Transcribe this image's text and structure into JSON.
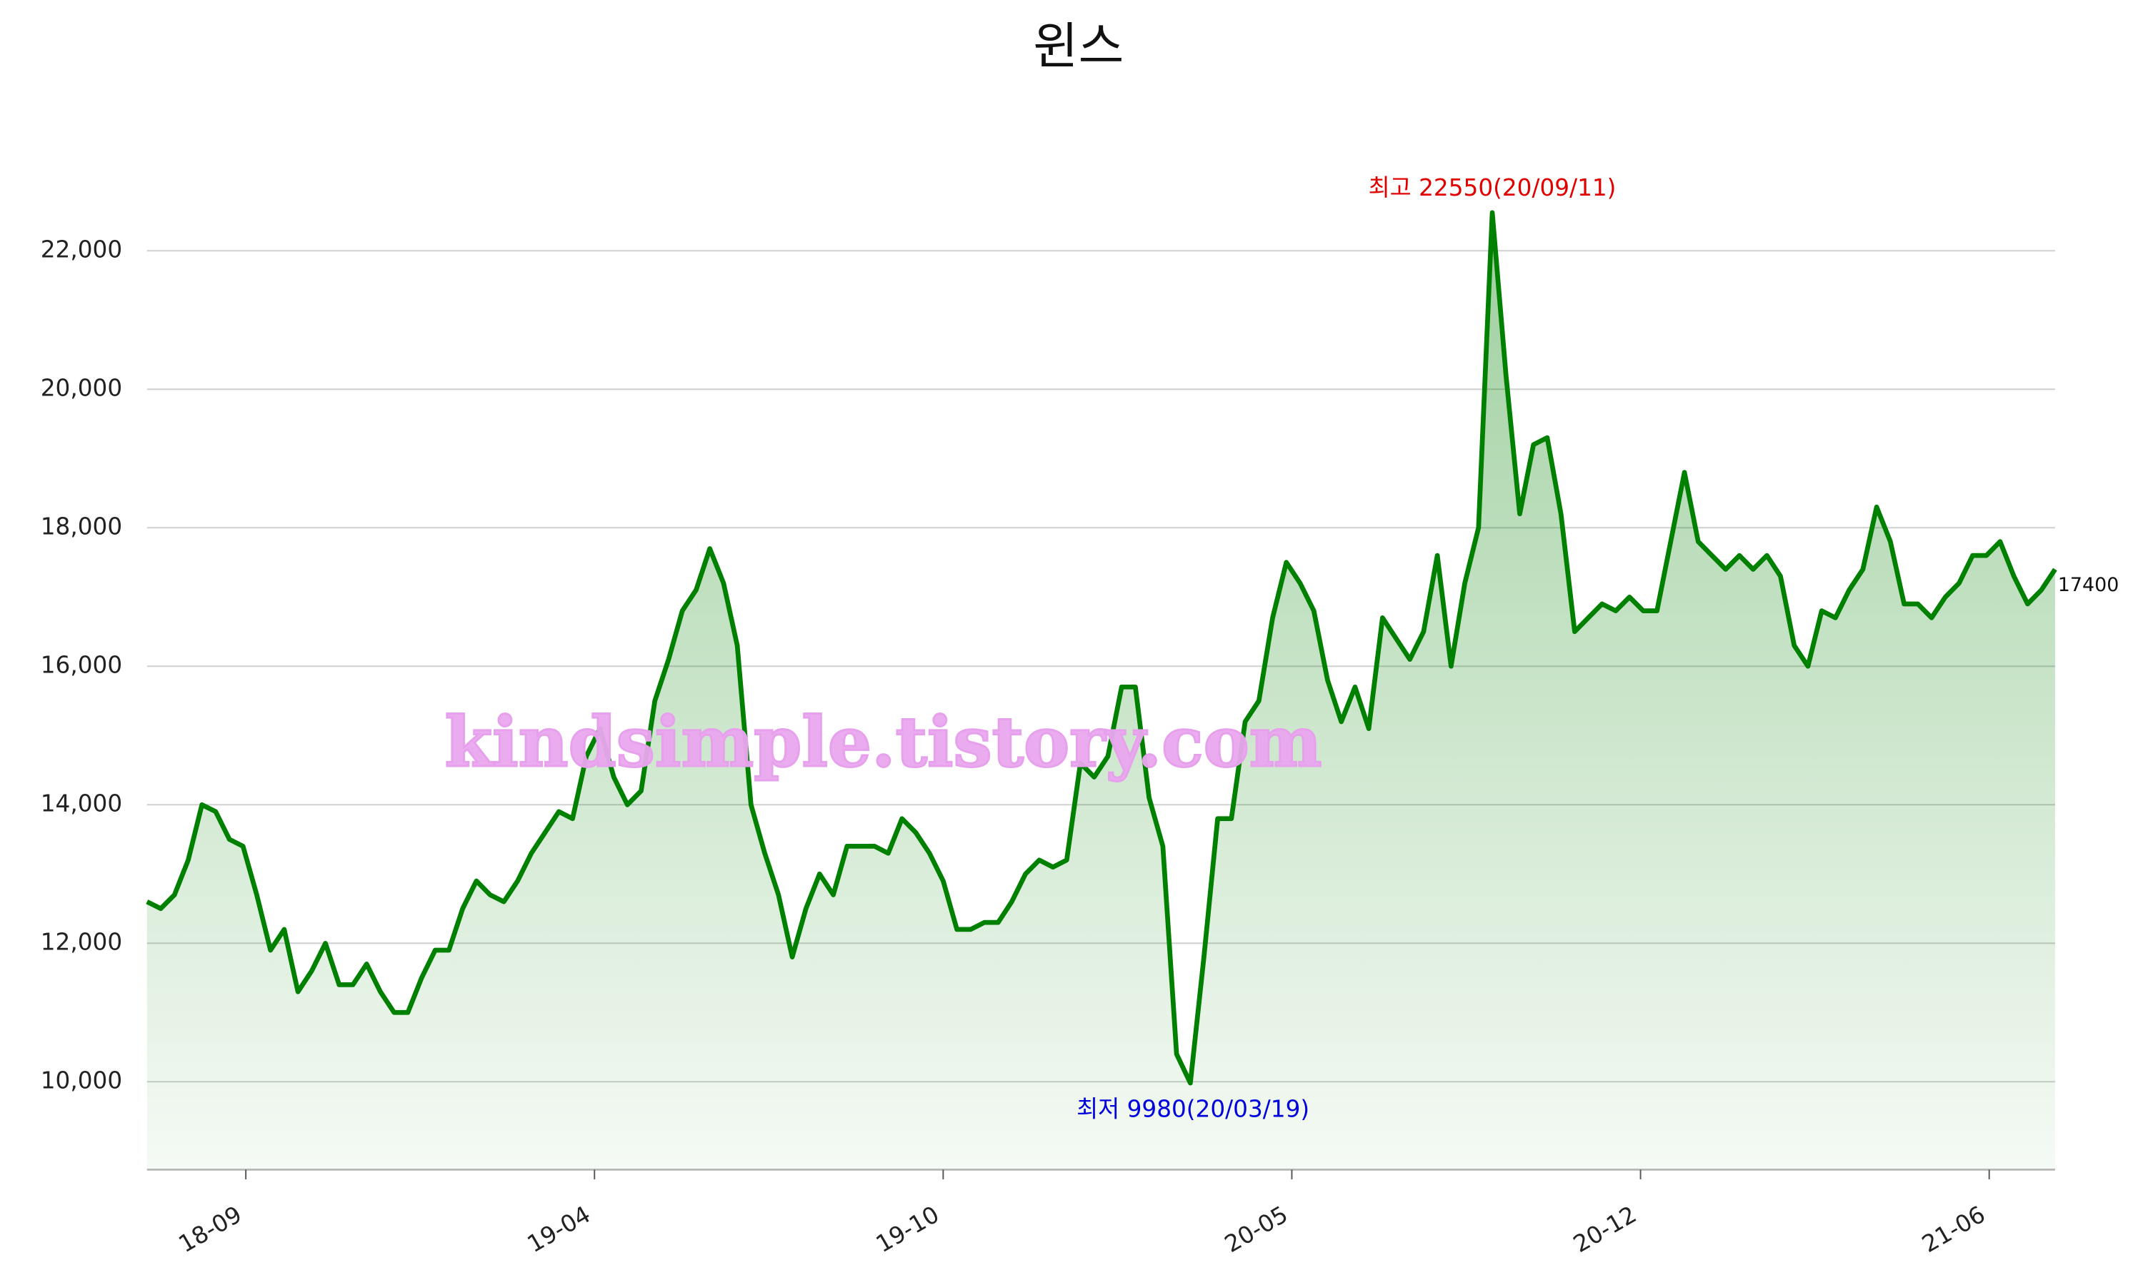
{
  "chart_data": {
    "type": "line",
    "title": "윈스",
    "series": [
      {
        "name": "윈스",
        "color": "#008000",
        "values": [
          12600,
          12500,
          12700,
          13200,
          14000,
          13900,
          13500,
          13400,
          12700,
          11900,
          12200,
          11300,
          11600,
          12000,
          11400,
          11400,
          11700,
          11300,
          11000,
          11000,
          11500,
          11900,
          11900,
          12500,
          12900,
          12700,
          12600,
          12900,
          13300,
          13600,
          13900,
          13800,
          14700,
          15100,
          14400,
          14000,
          14200,
          15500,
          16100,
          16800,
          17100,
          17700,
          17200,
          16300,
          14000,
          13300,
          12700,
          11800,
          12500,
          13000,
          12700,
          13400,
          13400,
          13400,
          13300,
          13800,
          13600,
          13300,
          12900,
          12200,
          12200,
          12300,
          12300,
          12600,
          13000,
          13200,
          13100,
          13200,
          14600,
          14400,
          14700,
          15700,
          15700,
          14100,
          13400,
          10400,
          9980,
          11800,
          13800,
          13800,
          15200,
          15500,
          16700,
          17500,
          17200,
          16800,
          15800,
          15200,
          15700,
          15100,
          16700,
          16400,
          16100,
          16500,
          17600,
          16000,
          17200,
          18000,
          22550,
          20200,
          18200,
          19200,
          19300,
          18200,
          16500,
          16700,
          16900,
          16800,
          17000,
          16800,
          16800,
          17800,
          18800,
          17800,
          17600,
          17400,
          17600,
          17400,
          17600,
          17300,
          16300,
          16000,
          16800,
          16700,
          17100,
          17400,
          18300,
          17800,
          16900,
          16900,
          16700,
          17000,
          17200,
          17600,
          17600,
          17800,
          17300,
          16900,
          17100,
          17400
        ]
      }
    ],
    "xlim": [
      0,
      139
    ],
    "xticks": [
      {
        "value": 7.2,
        "label": "18-09"
      },
      {
        "value": 32.6,
        "label": "19-04"
      },
      {
        "value": 58,
        "label": "19-10"
      },
      {
        "value": 83.4,
        "label": "20-05"
      },
      {
        "value": 108.8,
        "label": "20-12"
      },
      {
        "value": 134.2,
        "label": "21-06"
      }
    ],
    "ylim": [
      8730,
      23500
    ],
    "yticks": [
      {
        "value": 10000,
        "label": "10,000"
      },
      {
        "value": 12000,
        "label": "12,000"
      },
      {
        "value": 14000,
        "label": "14,000"
      },
      {
        "value": 16000,
        "label": "16,000"
      },
      {
        "value": 18000,
        "label": "18,000"
      },
      {
        "value": 20000,
        "label": "20,000"
      },
      {
        "value": 22000,
        "label": "22,000"
      }
    ],
    "grid": true,
    "annotations": {
      "max": "최고 22550(20/09/11)",
      "min": "최저 9980(20/03/19)",
      "max_color": "#e00000",
      "min_color": "#0000dd"
    },
    "watermark": "kindsimple.tistory.com"
  }
}
